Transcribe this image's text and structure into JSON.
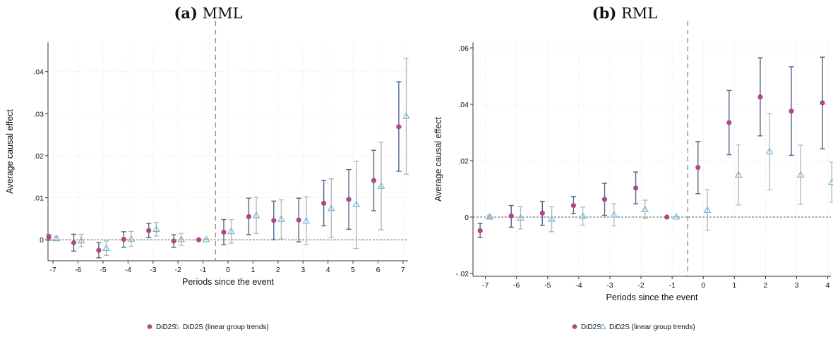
{
  "chart_data": [
    {
      "type": "scatter",
      "title_letter": "(a)",
      "title_name": "MML",
      "xlabel": "Periods since the event",
      "ylabel": "Average causal effect",
      "xlim": [
        -7.2,
        7.2
      ],
      "ylim": [
        -0.005,
        0.047
      ],
      "x_ticks": [
        -7,
        -6,
        -5,
        -4,
        -3,
        -2,
        -1,
        0,
        1,
        2,
        3,
        4,
        5,
        6,
        7
      ],
      "x_tick_labels": [
        "-7",
        "-6",
        "-5",
        "-4",
        "-3",
        "-2",
        "-1",
        "0",
        "1",
        "2",
        "3",
        "4",
        "5",
        "6",
        "7"
      ],
      "y_ticks": [
        0,
        0.01,
        0.02,
        0.03,
        0.04
      ],
      "y_tick_labels": [
        "0",
        ".01",
        ".02",
        ".03",
        ".04"
      ],
      "event_line_x": -0.5,
      "zero_line": 0,
      "grid": true,
      "legend_position": "bottom",
      "series": [
        {
          "name": "DiD2S",
          "color": "#b5477f",
          "ci_color": "#4a6a8a",
          "points": [
            {
              "x": -7,
              "y": 0.0006,
              "lo": -0.0001,
              "hi": 0.0012
            },
            {
              "x": -6,
              "y": -0.0007,
              "lo": -0.0027,
              "hi": 0.0013
            },
            {
              "x": -5,
              "y": -0.0025,
              "lo": -0.0043,
              "hi": -0.0007
            },
            {
              "x": -4,
              "y": 0.0001,
              "lo": -0.0018,
              "hi": 0.0019
            },
            {
              "x": -3,
              "y": 0.0022,
              "lo": 0.0005,
              "hi": 0.0039
            },
            {
              "x": -2,
              "y": -0.0003,
              "lo": -0.0018,
              "hi": 0.0012
            },
            {
              "x": -1,
              "y": 0.0,
              "lo": 0.0,
              "hi": 0.0
            },
            {
              "x": 0,
              "y": 0.0018,
              "lo": -0.0012,
              "hi": 0.0048
            },
            {
              "x": 1,
              "y": 0.0055,
              "lo": 0.0012,
              "hi": 0.0099
            },
            {
              "x": 2,
              "y": 0.0046,
              "lo": 0.0,
              "hi": 0.0092
            },
            {
              "x": 3,
              "y": 0.0047,
              "lo": -0.0005,
              "hi": 0.0099
            },
            {
              "x": 4,
              "y": 0.0087,
              "lo": 0.0033,
              "hi": 0.0141
            },
            {
              "x": 5,
              "y": 0.0096,
              "lo": 0.0025,
              "hi": 0.0167
            },
            {
              "x": 6,
              "y": 0.0141,
              "lo": 0.0069,
              "hi": 0.0213
            },
            {
              "x": 7,
              "y": 0.0269,
              "lo": 0.0163,
              "hi": 0.0376
            }
          ]
        },
        {
          "name": "DiD2S (linear group trends)",
          "color": "#6fb0d8",
          "ci_color": "#b8b8b8",
          "points": [
            {
              "x": -7,
              "y": 0.0003,
              "lo": -0.0002,
              "hi": 0.0008
            },
            {
              "x": -6,
              "y": -0.0002,
              "lo": -0.0017,
              "hi": 0.0013
            },
            {
              "x": -5,
              "y": -0.002,
              "lo": -0.0037,
              "hi": -0.0003
            },
            {
              "x": -4,
              "y": 0.0002,
              "lo": -0.0016,
              "hi": 0.002
            },
            {
              "x": -3,
              "y": 0.0025,
              "lo": 0.0009,
              "hi": 0.0041
            },
            {
              "x": -2,
              "y": 0.0001,
              "lo": -0.0013,
              "hi": 0.0015
            },
            {
              "x": -1,
              "y": 0.0001,
              "lo": 0.0,
              "hi": 0.0002
            },
            {
              "x": 0,
              "y": 0.002,
              "lo": -0.0008,
              "hi": 0.0048
            },
            {
              "x": 1,
              "y": 0.0058,
              "lo": 0.0015,
              "hi": 0.0101
            },
            {
              "x": 2,
              "y": 0.0049,
              "lo": 0.0002,
              "hi": 0.0095
            },
            {
              "x": 3,
              "y": 0.0045,
              "lo": -0.0012,
              "hi": 0.0102
            },
            {
              "x": 4,
              "y": 0.0075,
              "lo": 0.0005,
              "hi": 0.0145
            },
            {
              "x": 5,
              "y": 0.0084,
              "lo": -0.0021,
              "hi": 0.0187
            },
            {
              "x": 6,
              "y": 0.0128,
              "lo": 0.0024,
              "hi": 0.0232
            },
            {
              "x": 7,
              "y": 0.0294,
              "lo": 0.0156,
              "hi": 0.0432
            }
          ]
        }
      ]
    },
    {
      "type": "scatter",
      "title_letter": "(b)",
      "title_name": "RML",
      "xlabel": "Periods since the event",
      "ylabel": "Average causal effect",
      "xlim": [
        -7.4,
        4.1
      ],
      "ylim": [
        -0.021,
        0.062
      ],
      "x_ticks": [
        -7,
        -6,
        -5,
        -4,
        -3,
        -2,
        -1,
        0,
        1,
        2,
        3,
        4
      ],
      "x_tick_labels": [
        "-7",
        "-6",
        "-5",
        "-4",
        "-3",
        "-2",
        "-1",
        "0",
        "1",
        "2",
        "3",
        "4"
      ],
      "y_ticks": [
        -0.02,
        0,
        0.02,
        0.04,
        0.06
      ],
      "y_tick_labels": [
        "-.02",
        "0",
        ".02",
        ".04",
        ".06"
      ],
      "event_line_x": -0.5,
      "zero_line": 0,
      "grid": true,
      "legend_position": "bottom",
      "series": [
        {
          "name": "DiD2S",
          "color": "#b5477f",
          "ci_color": "#4a6a8a",
          "points": [
            {
              "x": -7,
              "y": -0.0048,
              "lo": -0.0072,
              "hi": -0.0022
            },
            {
              "x": -6,
              "y": 0.0004,
              "lo": -0.0036,
              "hi": 0.0041
            },
            {
              "x": -5,
              "y": 0.0014,
              "lo": -0.0029,
              "hi": 0.0056
            },
            {
              "x": -4,
              "y": 0.0041,
              "lo": 0.0012,
              "hi": 0.0073
            },
            {
              "x": -3,
              "y": 0.0063,
              "lo": 0.0006,
              "hi": 0.012
            },
            {
              "x": -2,
              "y": 0.0103,
              "lo": 0.0047,
              "hi": 0.016
            },
            {
              "x": -1,
              "y": 0.0,
              "lo": 0.0,
              "hi": 0.0
            },
            {
              "x": 0,
              "y": 0.0176,
              "lo": 0.0083,
              "hi": 0.0268
            },
            {
              "x": 1,
              "y": 0.0335,
              "lo": 0.0221,
              "hi": 0.0449
            },
            {
              "x": 2,
              "y": 0.0426,
              "lo": 0.0288,
              "hi": 0.0565
            },
            {
              "x": 3,
              "y": 0.0376,
              "lo": 0.0219,
              "hi": 0.0533
            },
            {
              "x": 4,
              "y": 0.0405,
              "lo": 0.0242,
              "hi": 0.0567
            }
          ]
        },
        {
          "name": "DiD2S (linear group trends)",
          "color": "#6fb0d8",
          "ci_color": "#b8b8b8",
          "points": [
            {
              "x": -7,
              "y": 0.0001,
              "lo": -0.0004,
              "hi": 0.0006
            },
            {
              "x": -6,
              "y": -0.0003,
              "lo": -0.0042,
              "hi": 0.0037
            },
            {
              "x": -5,
              "y": -0.0007,
              "lo": -0.0052,
              "hi": 0.0037
            },
            {
              "x": -4,
              "y": 0.0003,
              "lo": -0.0029,
              "hi": 0.0035
            },
            {
              "x": -3,
              "y": 0.0008,
              "lo": -0.0031,
              "hi": 0.0047
            },
            {
              "x": -2,
              "y": 0.0027,
              "lo": -0.0006,
              "hi": 0.006
            },
            {
              "x": -1,
              "y": 0.0001,
              "lo": 0.0,
              "hi": 0.0002
            },
            {
              "x": 0,
              "y": 0.0025,
              "lo": -0.0047,
              "hi": 0.0097
            },
            {
              "x": 1,
              "y": 0.015,
              "lo": 0.0043,
              "hi": 0.0256
            },
            {
              "x": 2,
              "y": 0.0233,
              "lo": 0.0098,
              "hi": 0.0367
            },
            {
              "x": 3,
              "y": 0.015,
              "lo": 0.0045,
              "hi": 0.0255
            },
            {
              "x": 4,
              "y": 0.0124,
              "lo": 0.0053,
              "hi": 0.0195
            }
          ]
        }
      ]
    }
  ]
}
